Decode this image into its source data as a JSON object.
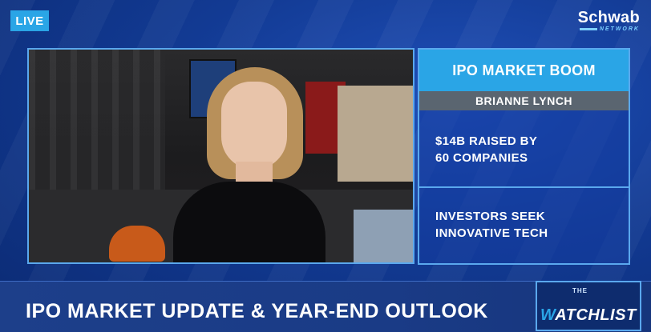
{
  "live_badge": "LIVE",
  "network": {
    "brand": "Schwab",
    "sub": "NETWORK"
  },
  "card": {
    "title": "IPO MARKET BOOM",
    "name": "BRIANNE LYNCH",
    "items": [
      {
        "line1": "$14B RAISED BY",
        "line2": "60 COMPANIES"
      },
      {
        "line1": "INVESTORS SEEK",
        "line2": "INNOVATIVE TECH"
      }
    ]
  },
  "headline": "IPO MARKET UPDATE & YEAR-END OUTLOOK",
  "show": {
    "the": "THE",
    "first_letter": "W",
    "rest": "ATCHLIST"
  },
  "colors": {
    "accent": "#2aa5e6",
    "background": "#123a93",
    "name_bar": "#5a6570"
  }
}
